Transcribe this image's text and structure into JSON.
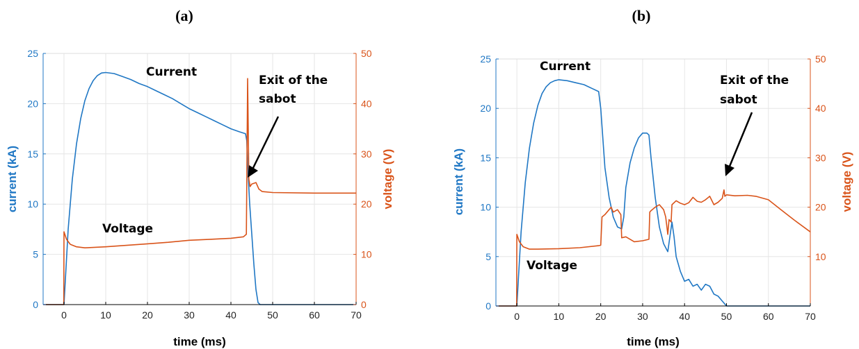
{
  "panels": [
    {
      "label": "(a)"
    },
    {
      "label": "(b)"
    }
  ],
  "colors": {
    "current": "#1f77c4",
    "voltage": "#d95319",
    "grid": "#e6e6e6",
    "axis": "#000000"
  },
  "chart_data": [
    {
      "type": "line",
      "panel": "(a)",
      "xlabel": "time (ms)",
      "ylabel_left": "current (kA)",
      "ylabel_right": "voltage (V)",
      "xlim": [
        -5,
        70
      ],
      "ylim_left": [
        0,
        25
      ],
      "ylim_right": [
        0,
        50
      ],
      "xticks": [
        "0",
        "10",
        "20",
        "30",
        "40",
        "50",
        "60",
        "70"
      ],
      "yticks_left": [
        "0",
        "5",
        "10",
        "15",
        "20",
        "25"
      ],
      "yticks_right": [
        "0",
        "10",
        "20",
        "30",
        "40",
        "50"
      ],
      "grid": true,
      "annotations": {
        "current": "Current",
        "voltage": "Voltage",
        "exit": [
          "Exit of the",
          "sabot"
        ]
      },
      "series": [
        {
          "name": "Current",
          "axis": "left",
          "x": [
            -5,
            0,
            0.4,
            1,
            2,
            3,
            4,
            5,
            6,
            7,
            8,
            9,
            10,
            12,
            14,
            16,
            18,
            20,
            22,
            24,
            26,
            28,
            30,
            32,
            34,
            36,
            38,
            40,
            42,
            43.5,
            43.8,
            44,
            44.5,
            45,
            45.5,
            46,
            46.5,
            47,
            50,
            60,
            70
          ],
          "y": [
            0,
            0,
            3,
            7.5,
            12.5,
            16,
            18.5,
            20.3,
            21.5,
            22.3,
            22.8,
            23.05,
            23.1,
            23.0,
            22.7,
            22.4,
            22.0,
            21.7,
            21.3,
            20.9,
            20.5,
            20.0,
            19.5,
            19.1,
            18.7,
            18.3,
            17.9,
            17.5,
            17.2,
            17.0,
            16.3,
            14.0,
            10.0,
            7.0,
            4.0,
            1.5,
            0.2,
            0,
            0,
            0,
            0
          ]
        },
        {
          "name": "Voltage",
          "axis": "right",
          "x": [
            -5,
            -0.05,
            0,
            0.2,
            0.6,
            1.5,
            3,
            5,
            10,
            15,
            20,
            25,
            30,
            35,
            40,
            43,
            43.7,
            44,
            44.3,
            44.6,
            45,
            46,
            46.7,
            47.5,
            50,
            60,
            70
          ],
          "y": [
            0,
            0,
            14.5,
            14,
            13,
            12,
            11.5,
            11.3,
            11.5,
            11.8,
            12.1,
            12.4,
            12.8,
            13.0,
            13.2,
            13.5,
            14,
            45,
            25,
            23.5,
            24,
            24.3,
            23.0,
            22.5,
            22.3,
            22.2,
            22.2
          ]
        }
      ]
    },
    {
      "type": "line",
      "panel": "(b)",
      "xlabel": "time (ms)",
      "ylabel_left": "current (kA)",
      "ylabel_right": "voltage (V)",
      "xlim": [
        -5,
        70
      ],
      "ylim_left": [
        0,
        25
      ],
      "ylim_right": [
        0,
        50
      ],
      "xticks": [
        "0",
        "10",
        "20",
        "30",
        "40",
        "50",
        "60",
        "70"
      ],
      "yticks_left": [
        "0",
        "5",
        "10",
        "15",
        "20",
        "25"
      ],
      "yticks_right": [
        "10",
        "20",
        "30",
        "40",
        "50"
      ],
      "grid": true,
      "annotations": {
        "current": "Current",
        "voltage": "Voltage",
        "exit": [
          "Exit of the",
          "sabot"
        ]
      },
      "series": [
        {
          "name": "Current",
          "axis": "left",
          "x": [
            -5,
            0,
            0.4,
            1,
            2,
            3,
            4,
            5,
            6,
            7,
            8,
            9,
            10,
            12,
            14,
            16,
            18,
            19.5,
            20,
            20.5,
            21,
            22,
            23,
            24,
            25,
            25.5,
            26,
            27,
            28,
            29,
            30,
            31,
            31.5,
            32,
            33,
            34,
            35,
            36,
            36.5,
            37,
            37.5,
            38,
            39,
            40,
            41,
            42,
            43,
            44,
            45,
            46,
            47,
            48,
            49,
            50,
            55,
            60,
            70
          ],
          "y": [
            0,
            0,
            3,
            7.5,
            12.5,
            16,
            18.5,
            20.3,
            21.5,
            22.2,
            22.6,
            22.8,
            22.9,
            22.8,
            22.6,
            22.4,
            22.0,
            21.7,
            20,
            17,
            14,
            11,
            9,
            8,
            7.8,
            9,
            12,
            14.5,
            16,
            17,
            17.5,
            17.5,
            17.3,
            15,
            11,
            8,
            6.3,
            5.5,
            7,
            8.5,
            7,
            5,
            3.5,
            2.5,
            2.7,
            2.0,
            2.2,
            1.6,
            2.2,
            2.0,
            1.2,
            1.0,
            0.5,
            0,
            0,
            0,
            0
          ]
        },
        {
          "name": "Voltage",
          "axis": "right",
          "x": [
            -5,
            -0.05,
            0,
            0.2,
            0.6,
            1.5,
            3,
            5,
            10,
            15,
            19.5,
            20,
            20.3,
            21,
            22,
            22.5,
            23,
            24,
            24.8,
            25,
            26,
            28,
            30,
            31.5,
            31.7,
            32,
            33,
            34,
            35,
            35.5,
            36,
            36.3,
            36.8,
            37,
            38,
            39,
            40,
            41,
            42,
            43,
            44,
            45,
            46,
            47,
            48,
            49,
            49.4,
            49.6,
            50,
            52,
            55,
            57,
            60,
            63,
            66,
            70
          ],
          "y": [
            0,
            0,
            14.5,
            14,
            13,
            12,
            11.5,
            11.5,
            11.6,
            11.8,
            12.2,
            12.3,
            18,
            18.5,
            19.5,
            20,
            19.0,
            19.5,
            18.5,
            13.8,
            14.0,
            13.0,
            13.2,
            13.5,
            19,
            19.3,
            20,
            20.5,
            19.5,
            18,
            14.5,
            17.5,
            17,
            20.5,
            21.3,
            20.8,
            20.5,
            20.9,
            22,
            21.2,
            21,
            21.5,
            22.2,
            20.5,
            21.0,
            21.8,
            23.5,
            22.2,
            22.5,
            22.3,
            22.4,
            22.2,
            21.5,
            19.5,
            17.5,
            15
          ]
        }
      ]
    }
  ]
}
